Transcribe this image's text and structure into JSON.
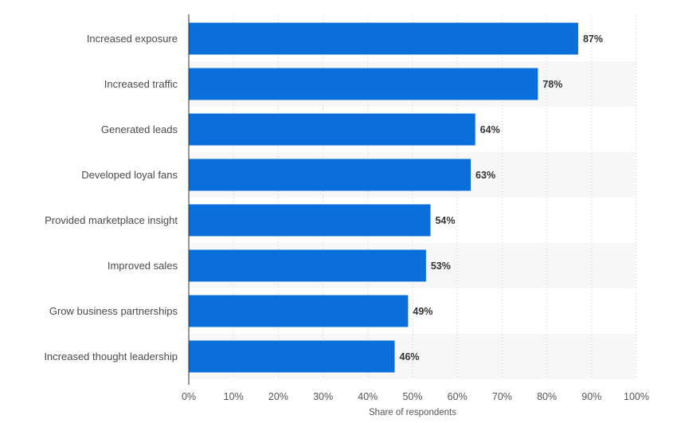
{
  "chart_data": {
    "type": "bar",
    "orientation": "horizontal",
    "categories": [
      "Increased exposure",
      "Increased traffic",
      "Generated leads",
      "Developed loyal fans",
      "Provided marketplace insight",
      "Improved sales",
      "Grow business partnerships",
      "Increased thought leadership"
    ],
    "values": [
      87,
      78,
      64,
      63,
      54,
      53,
      49,
      46
    ],
    "data_labels": [
      "87%",
      "78%",
      "64%",
      "63%",
      "54%",
      "53%",
      "49%",
      "46%"
    ],
    "title": "",
    "xlabel": "Share of respondents",
    "ylabel": "",
    "xlim": [
      0,
      100
    ],
    "x_ticks": [
      "0%",
      "10%",
      "20%",
      "30%",
      "40%",
      "50%",
      "60%",
      "70%",
      "80%",
      "90%",
      "100%"
    ],
    "grid": "vertical dotted",
    "legend": "none",
    "colors": {
      "bar": "#0a6fdb",
      "band": "#f7f7f7",
      "grid": "#cccccc",
      "axis": "#333333"
    }
  }
}
